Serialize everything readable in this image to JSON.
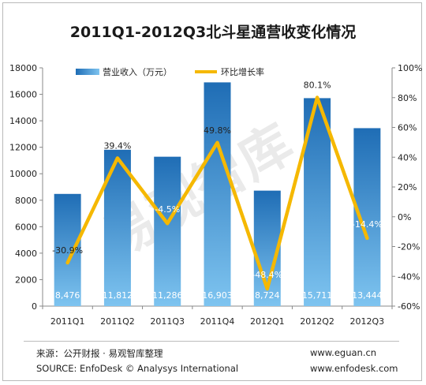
{
  "chart_data": {
    "type": "bar",
    "title": "2011Q1-2012Q3北斗星通营收变化情况",
    "categories": [
      "2011Q1",
      "2011Q2",
      "2011Q3",
      "2011Q4",
      "2012Q1",
      "2012Q2",
      "2012Q3"
    ],
    "series": [
      {
        "name": "营业收入（万元）",
        "type": "bar",
        "axis": "left",
        "values": [
          8476,
          11812,
          11286,
          16903,
          8724,
          15711,
          13444
        ],
        "labels": [
          "8,476",
          "11,812",
          "11,286",
          "16,903",
          "8,724",
          "15,711",
          "13,444"
        ]
      },
      {
        "name": "环比增长率",
        "type": "line",
        "axis": "right",
        "values": [
          -30.9,
          39.4,
          -4.5,
          49.8,
          -48.4,
          80.1,
          -14.4
        ],
        "labels": [
          "-30.9%",
          "39.4%",
          "-4.5%",
          "49.8%",
          "-48.4%",
          "80.1%",
          "-14.4%"
        ]
      }
    ],
    "y_left": {
      "min": 0,
      "max": 18000,
      "ticks": [
        "0",
        "2000",
        "4000",
        "6000",
        "8000",
        "10000",
        "12000",
        "14000",
        "16000",
        "18000"
      ]
    },
    "y_right": {
      "min": -60,
      "max": 100,
      "ticks": [
        "-60%",
        "-40%",
        "-20%",
        "0%",
        "20%",
        "40%",
        "60%",
        "80%",
        "100%"
      ]
    },
    "legend_position": "top",
    "grid": false,
    "colors": {
      "bar_top": "#1f6db5",
      "bar_bottom": "#7ec4f0",
      "line": "#f5b800"
    }
  },
  "watermark": "易观智库",
  "footer": {
    "source_cn": "来源：公开财报 · 易观智库整理",
    "source_en": "SOURCE: EnfoDesk © Analysys International",
    "site1": "www.eguan.cn",
    "site2": "www.enfodesk.com"
  }
}
